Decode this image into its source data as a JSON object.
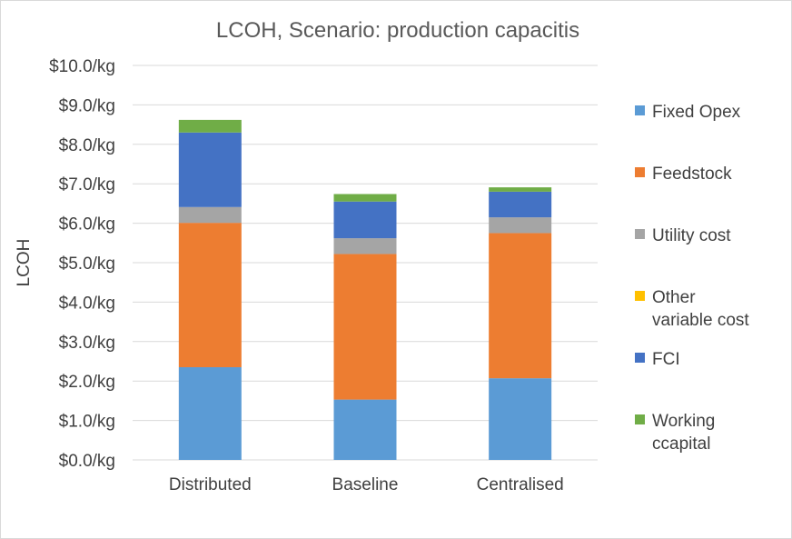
{
  "chart_data": {
    "type": "bar",
    "stacked": true,
    "title": "LCOH, Scenario: production capacitis",
    "xlabel": "",
    "ylabel": "LCOH",
    "ylim": [
      0,
      10
    ],
    "y_ticks": [
      "$0.0/kg",
      "$1.0/kg",
      "$2.0/kg",
      "$3.0/kg",
      "$4.0/kg",
      "$5.0/kg",
      "$6.0/kg",
      "$7.0/kg",
      "$8.0/kg",
      "$9.0/kg",
      "$10.0/kg"
    ],
    "categories": [
      "Distributed",
      "Baseline",
      "Centralised"
    ],
    "grid": true,
    "legend": "right",
    "series": [
      {
        "name": "Fixed Opex",
        "legend_lines": [
          "Fixed Opex"
        ],
        "color": "#5B9BD5",
        "values": [
          2.35,
          1.53,
          2.07
        ]
      },
      {
        "name": "Feedstock",
        "legend_lines": [
          "Feedstock"
        ],
        "color": "#ED7D31",
        "values": [
          3.66,
          3.69,
          3.68
        ]
      },
      {
        "name": "Utility cost",
        "legend_lines": [
          "Utility cost"
        ],
        "color": "#A5A5A5",
        "values": [
          0.4,
          0.4,
          0.4
        ]
      },
      {
        "name": "Other variable cost",
        "legend_lines": [
          "Other",
          "variable cost"
        ],
        "color": "#FFC000",
        "values": [
          0.0,
          0.0,
          0.0
        ]
      },
      {
        "name": "FCI",
        "legend_lines": [
          "FCI"
        ],
        "color": "#4472C4",
        "values": [
          1.89,
          0.93,
          0.65
        ]
      },
      {
        "name": "Working ccapital",
        "legend_lines": [
          "Working",
          "ccapital"
        ],
        "color": "#70AD47",
        "values": [
          0.32,
          0.19,
          0.11
        ]
      }
    ]
  }
}
